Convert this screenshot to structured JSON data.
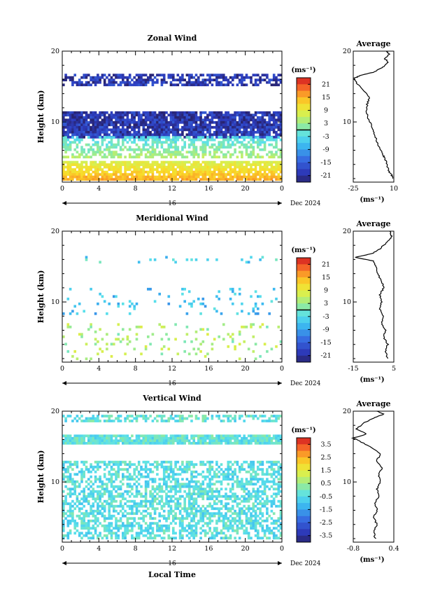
{
  "figure": {
    "date_label": "Dec 2024",
    "day_label": "16",
    "xlabel": "Local Time",
    "ylabel": "Height (km)"
  },
  "chart_data": [
    {
      "type": "heatmap",
      "id": "zonal",
      "title": "Zonal Wind",
      "xlabel": "Local Time",
      "ylabel": "Height (km)",
      "x_ticks": [
        "0",
        "4",
        "8",
        "12",
        "16",
        "20",
        "0"
      ],
      "y_ticks": [
        "10",
        "20"
      ],
      "xlim": [
        0,
        24
      ],
      "ylim": [
        1.5,
        20
      ],
      "colorbar": {
        "unit": "(ms⁻¹)",
        "ticks": [
          "21",
          "15",
          "9",
          "3",
          "-3",
          "-9",
          "-15",
          "-21"
        ],
        "range": [
          -24,
          24
        ],
        "zero_line": true
      },
      "layers": [
        {
          "name": "tropopause jet band",
          "y_range": [
            15.3,
            16.8
          ],
          "value": -20,
          "coverage": "broken"
        },
        {
          "name": "upper troposphere westerly max",
          "y_range": [
            8.0,
            11.5
          ],
          "value": -20,
          "coverage": "dense"
        },
        {
          "name": "mid troposphere",
          "y_range": [
            5.0,
            8.0
          ],
          "value": -3,
          "coverage": "medium"
        },
        {
          "name": "lower troposphere",
          "y_range": [
            1.8,
            4.5
          ],
          "value": 12,
          "coverage": "dense"
        }
      ],
      "profile": {
        "title": "Average",
        "xlabel": "(ms⁻¹)",
        "x_ticks": [
          "-25",
          "10"
        ],
        "xlim": [
          -25,
          10
        ],
        "y_ticks": [
          "10",
          "20"
        ],
        "points": [
          [
            9,
            2
          ],
          [
            8,
            2.5
          ],
          [
            6,
            3
          ],
          [
            4,
            4
          ],
          [
            2,
            5
          ],
          [
            0,
            5.5
          ],
          [
            -3,
            6.5
          ],
          [
            -5,
            7.5
          ],
          [
            -7,
            8.5
          ],
          [
            -9,
            9.5
          ],
          [
            -12,
            10.5
          ],
          [
            -14,
            11.5
          ],
          [
            -13,
            12.5
          ],
          [
            -11,
            13.5
          ],
          [
            -16,
            14.5
          ],
          [
            -22,
            15.5
          ],
          [
            -24,
            16.2
          ],
          [
            -18,
            16.6
          ],
          [
            -8,
            17
          ],
          [
            -2,
            17.5
          ],
          [
            3,
            18
          ],
          [
            5,
            18.5
          ],
          [
            2,
            19
          ],
          [
            6,
            19.5
          ],
          [
            4,
            20
          ]
        ]
      }
    },
    {
      "type": "heatmap",
      "id": "meridional",
      "title": "Meridional Wind",
      "xlabel": "Local Time",
      "ylabel": "Height (km)",
      "x_ticks": [
        "0",
        "4",
        "8",
        "12",
        "16",
        "20",
        "0"
      ],
      "y_ticks": [
        "10",
        "20"
      ],
      "xlim": [
        0,
        24
      ],
      "ylim": [
        1.5,
        20
      ],
      "colorbar": {
        "unit": "(ms⁻¹)",
        "ticks": [
          "21",
          "15",
          "9",
          "3",
          "-3",
          "-9",
          "-15",
          "-21"
        ],
        "range": [
          -24,
          24
        ],
        "zero_line": true
      },
      "layers": [
        {
          "name": "upper band",
          "y_range": [
            15.5,
            16.5
          ],
          "value": -4,
          "coverage": "sparse"
        },
        {
          "name": "mid band",
          "y_range": [
            8.5,
            12
          ],
          "value": -6,
          "coverage": "sparse"
        },
        {
          "name": "lower band",
          "y_range": [
            2.0,
            7.0
          ],
          "value": 4,
          "coverage": "sparse"
        }
      ],
      "profile": {
        "title": "Average",
        "xlabel": "(ms⁻¹)",
        "x_ticks": [
          "-15",
          "5"
        ],
        "xlim": [
          -15,
          5
        ],
        "y_ticks": [
          "10",
          "20"
        ],
        "points": [
          [
            2,
            2
          ],
          [
            1,
            3
          ],
          [
            2,
            4
          ],
          [
            0,
            5
          ],
          [
            1,
            6
          ],
          [
            -1,
            7
          ],
          [
            0,
            8
          ],
          [
            -2,
            9
          ],
          [
            -1,
            10
          ],
          [
            -2,
            11
          ],
          [
            0,
            12
          ],
          [
            -1,
            13
          ],
          [
            -3,
            14
          ],
          [
            -4,
            15
          ],
          [
            -5,
            15.8
          ],
          [
            -14,
            16.3
          ],
          [
            -6,
            16.8
          ],
          [
            -2,
            17.5
          ],
          [
            2,
            18.5
          ],
          [
            4,
            19.3
          ],
          [
            3,
            20
          ]
        ]
      }
    },
    {
      "type": "heatmap",
      "id": "vertical",
      "title": "Vertical Wind",
      "xlabel": "Local Time",
      "ylabel": "Height (km)",
      "x_ticks": [
        "0",
        "4",
        "8",
        "12",
        "16",
        "20",
        "0"
      ],
      "y_ticks": [
        "10",
        "20"
      ],
      "xlim": [
        0,
        24
      ],
      "ylim": [
        1.5,
        20
      ],
      "colorbar": {
        "unit": "(ms⁻¹)",
        "ticks": [
          "3.5",
          "2.5",
          "1.5",
          "0.5",
          "-0.5",
          "-1.5",
          "-2.5",
          "-3.5"
        ],
        "range": [
          -4,
          4
        ],
        "zero_line": false
      },
      "layers": [
        {
          "name": "upper band",
          "y_range": [
            18.5,
            19.5
          ],
          "value": -0.3,
          "coverage": "medium"
        },
        {
          "name": "tropopause band",
          "y_range": [
            15.5,
            16.7
          ],
          "value": -0.3,
          "coverage": "dense"
        },
        {
          "name": "troposphere",
          "y_range": [
            2.0,
            13.0
          ],
          "value": -0.4,
          "coverage": "medium"
        }
      ],
      "profile": {
        "title": "Average",
        "xlabel": "(ms⁻¹)",
        "x_ticks": [
          "-0.8",
          "0.4"
        ],
        "xlim": [
          -0.8,
          0.4
        ],
        "y_ticks": [
          "10",
          "20"
        ],
        "points": [
          [
            -0.15,
            2
          ],
          [
            -0.2,
            3
          ],
          [
            -0.1,
            4
          ],
          [
            -0.2,
            5
          ],
          [
            -0.1,
            6
          ],
          [
            -0.15,
            7
          ],
          [
            -0.05,
            8
          ],
          [
            -0.1,
            9
          ],
          [
            0.0,
            10
          ],
          [
            -0.05,
            11
          ],
          [
            0.05,
            12
          ],
          [
            -0.1,
            13
          ],
          [
            0.0,
            14
          ],
          [
            -0.3,
            15
          ],
          [
            -0.55,
            15.6
          ],
          [
            -0.8,
            16.2
          ],
          [
            -0.4,
            16.8
          ],
          [
            -0.7,
            17.5
          ],
          [
            -0.5,
            18.3
          ],
          [
            -0.2,
            19
          ],
          [
            0.1,
            19.6
          ],
          [
            -0.1,
            20
          ]
        ]
      }
    }
  ]
}
